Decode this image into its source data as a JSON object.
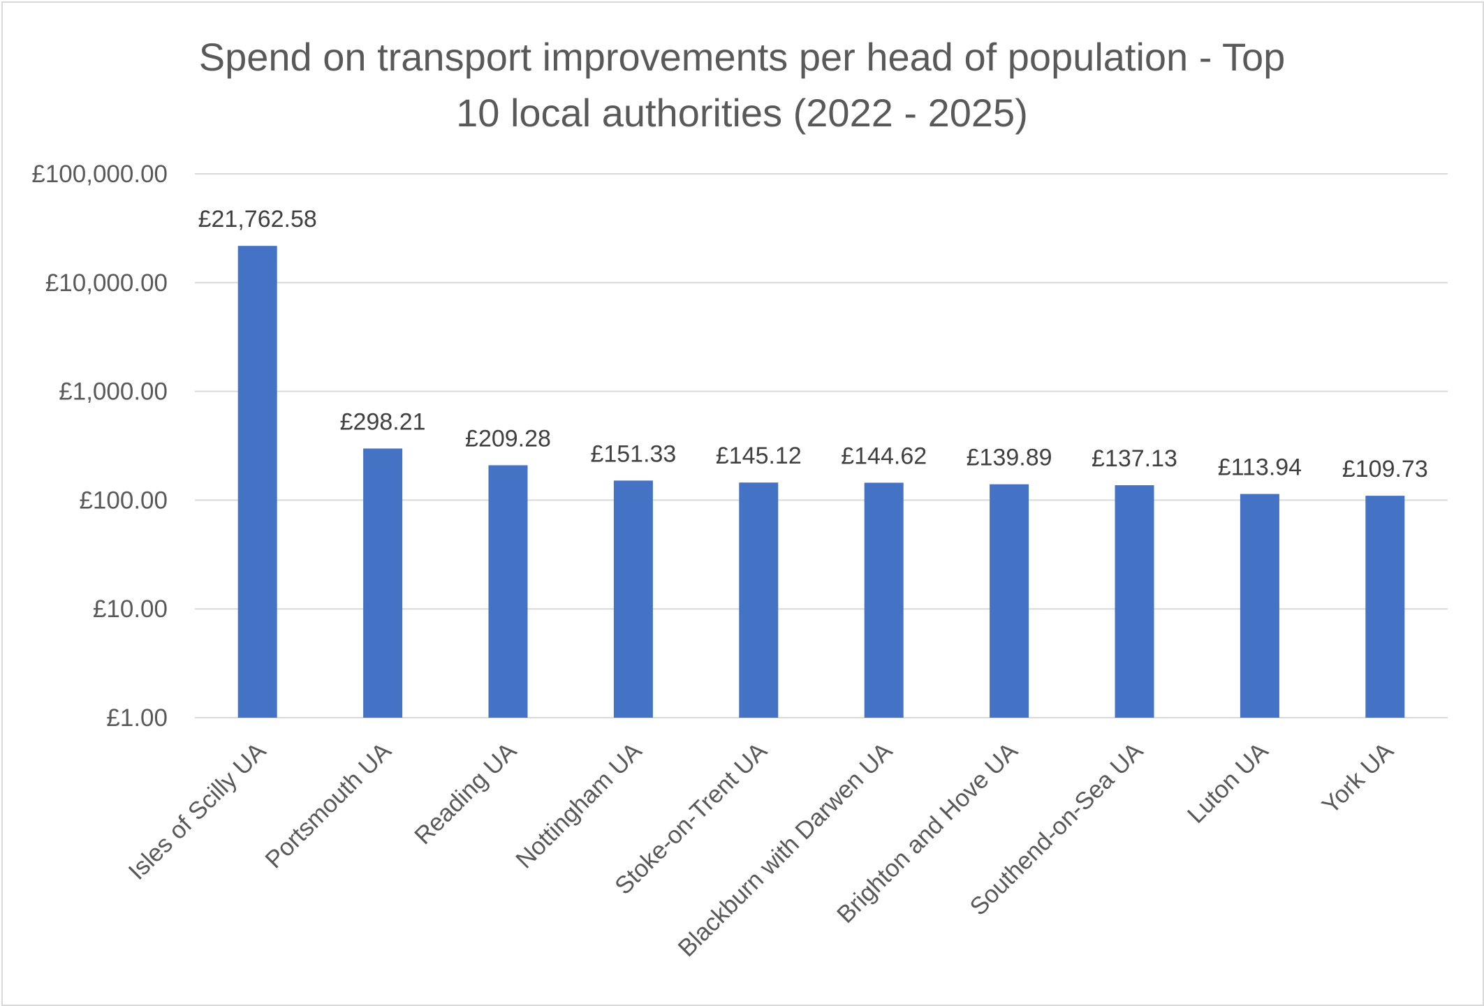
{
  "chart_data": {
    "type": "bar",
    "title_lines": [
      "Spend on transport improvements per head of population - Top",
      "10 local authorities (2022 - 2025)"
    ],
    "categories": [
      "Isles of Scilly UA",
      "Portsmouth UA",
      "Reading UA",
      "Nottingham UA",
      "Stoke-on-Trent UA",
      "Blackburn with Darwen UA",
      "Brighton and Hove UA",
      "Southend-on-Sea UA",
      "Luton UA",
      "York UA"
    ],
    "series": [
      {
        "values": [
          21762.58,
          298.21,
          209.28,
          151.33,
          145.12,
          144.62,
          139.89,
          137.13,
          113.94,
          109.73
        ],
        "data_labels": [
          "£21,762.58",
          "£298.21",
          "£209.28",
          "£151.33",
          "£145.12",
          "£144.62",
          "£139.89",
          "£137.13",
          "£113.94",
          "£109.73"
        ],
        "color": "#4472c4"
      }
    ],
    "y_scale": "log10",
    "ylim": [
      1,
      100000
    ],
    "y_ticks": [
      1,
      10,
      100,
      1000,
      10000,
      100000
    ],
    "y_tick_labels": [
      "£1.00",
      "£10.00",
      "£100.00",
      "£1,000.00",
      "£10,000.00",
      "£100,000.00"
    ],
    "grid": true,
    "legend": "none",
    "colors": {
      "bar": "#4472c4",
      "gridline": "#d9d9d9",
      "axis_text": "#595959",
      "data_label_text": "#404040",
      "title_text": "#595959",
      "frame_border": "#d9d9d9"
    }
  }
}
